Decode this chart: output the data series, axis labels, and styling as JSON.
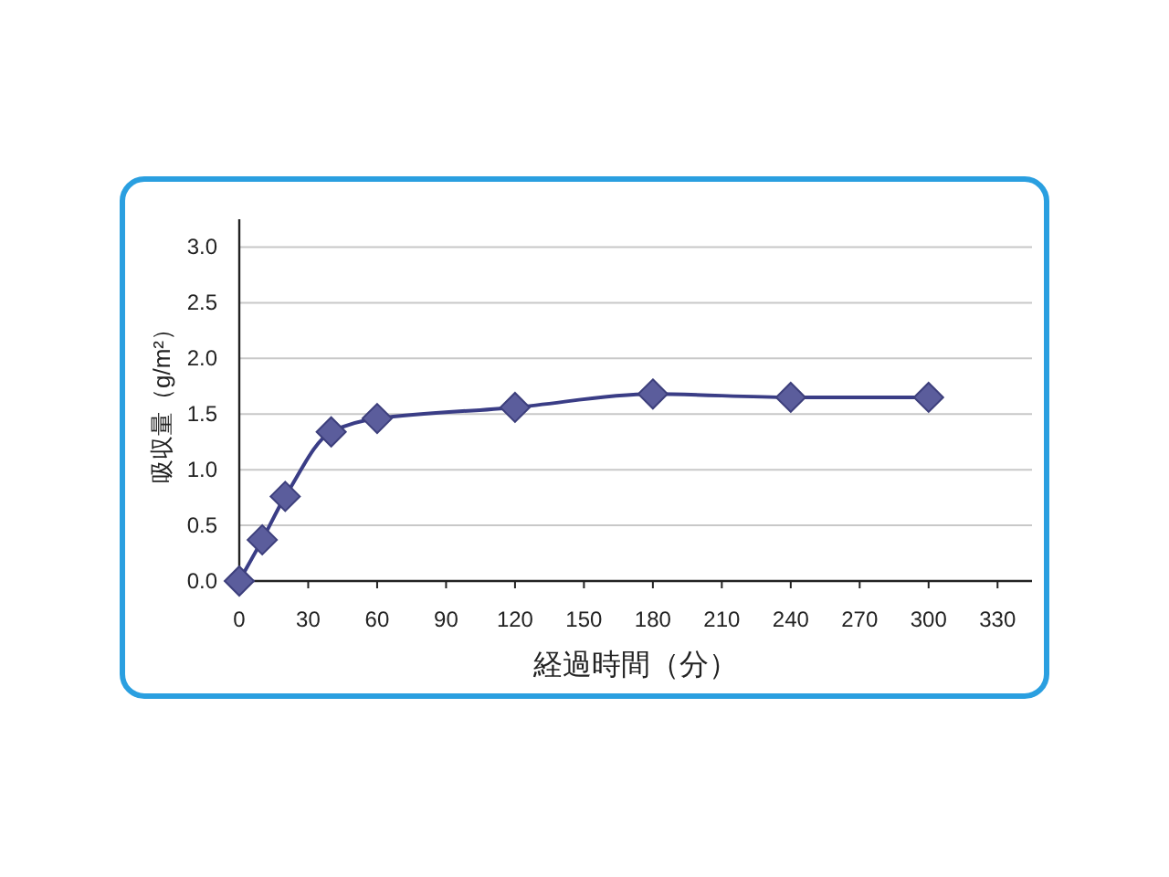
{
  "chart_data": {
    "type": "line",
    "xlabel": "経過時間（分）",
    "ylabel": "吸収量（g/m²）",
    "x": [
      0,
      10,
      20,
      40,
      60,
      120,
      180,
      240,
      300
    ],
    "series": [
      {
        "color": "#3a3d86",
        "values": [
          0,
          0.37,
          0.76,
          1.34,
          1.46,
          1.56,
          1.68,
          1.65,
          1.65
        ]
      }
    ],
    "marker": "diamond",
    "line_style": "solid",
    "grid": "y",
    "xlim": [
      0,
      345
    ],
    "ylim": [
      0,
      3.25
    ],
    "xticks": [
      0,
      30,
      60,
      90,
      120,
      150,
      180,
      210,
      240,
      270,
      300,
      330
    ],
    "yticks": [
      {
        "value": 0,
        "label": "0.0"
      },
      {
        "value": 0.5,
        "label": "0.5"
      },
      {
        "value": 1,
        "label": "1.0"
      },
      {
        "value": 1.5,
        "label": "1.5"
      },
      {
        "value": 2,
        "label": "2.0"
      },
      {
        "value": 2.5,
        "label": "2.5"
      },
      {
        "value": 3,
        "label": "3.0"
      }
    ]
  }
}
